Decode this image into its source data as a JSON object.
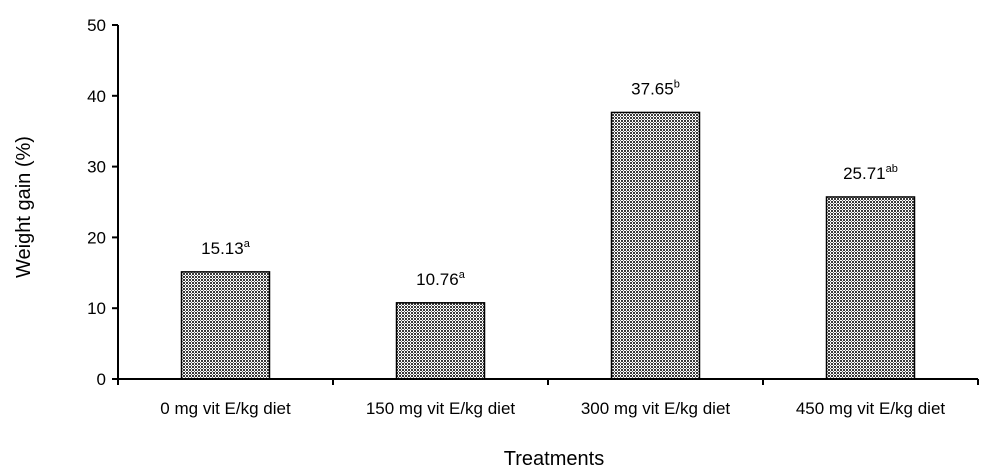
{
  "chart_data": {
    "type": "bar",
    "categories": [
      "0 mg vit E/kg diet",
      "150 mg vit E/kg diet",
      "300 mg vit E/kg diet",
      "450 mg vit E/kg diet"
    ],
    "values": [
      15.13,
      10.76,
      37.65,
      25.71
    ],
    "value_labels": [
      "15.13",
      "10.76",
      "37.65",
      "25.71"
    ],
    "significance_letters": [
      "a",
      "a",
      "b",
      "ab"
    ],
    "xlabel": "Treatments",
    "ylabel": "Weight gain (%)",
    "ylim": [
      0,
      50
    ],
    "yticks": [
      0,
      10,
      20,
      30,
      40,
      50
    ],
    "grid": false,
    "bar_fill": "#9a9a9a",
    "bar_stroke": "#000000"
  }
}
